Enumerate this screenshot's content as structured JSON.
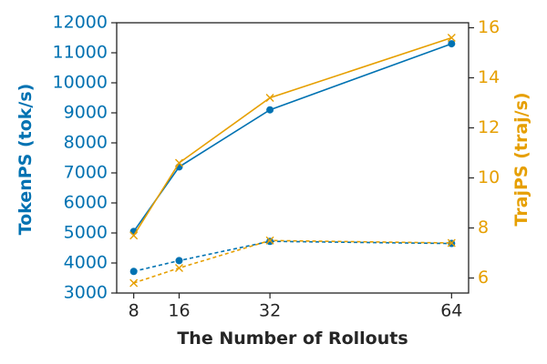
{
  "chart_data": {
    "type": "line",
    "title": "",
    "xlabel": "The Number of Rollouts",
    "ylabel_left": "TokenPS (tok/s)",
    "ylabel_right": "TrajPS (traj/s)",
    "x": [
      8,
      16,
      32,
      64
    ],
    "x_tick_labels": [
      "8",
      "16",
      "32",
      "64"
    ],
    "x_range": [
      5,
      67
    ],
    "ylim_left": [
      3000,
      12000
    ],
    "ylim_right": [
      5.4,
      16.2
    ],
    "y_ticks_left": [
      "3000",
      "4000",
      "5000",
      "6000",
      "7000",
      "8000",
      "9000",
      "10000",
      "11000",
      "12000"
    ],
    "y_ticks_right": [
      "6",
      "8",
      "10",
      "12",
      "14",
      "16"
    ],
    "grid": false,
    "colors": {
      "left_axis": "#0072b2",
      "right_axis": "#e69f00",
      "frame": "#222222"
    },
    "series": [
      {
        "axis": "left",
        "color": "#0072b2",
        "line_style": "solid",
        "marker": "circle",
        "values": [
          5050,
          7200,
          9100,
          11300
        ]
      },
      {
        "axis": "left",
        "color": "#0072b2",
        "line_style": "dashed",
        "marker": "circle",
        "values": [
          3720,
          4080,
          4720,
          4650
        ]
      },
      {
        "axis": "right",
        "color": "#e69f00",
        "line_style": "solid",
        "marker": "x",
        "values": [
          7.7,
          10.6,
          13.2,
          15.6
        ]
      },
      {
        "axis": "right",
        "color": "#e69f00",
        "line_style": "dashed",
        "marker": "x",
        "values": [
          5.8,
          6.4,
          7.5,
          7.4
        ]
      }
    ]
  }
}
